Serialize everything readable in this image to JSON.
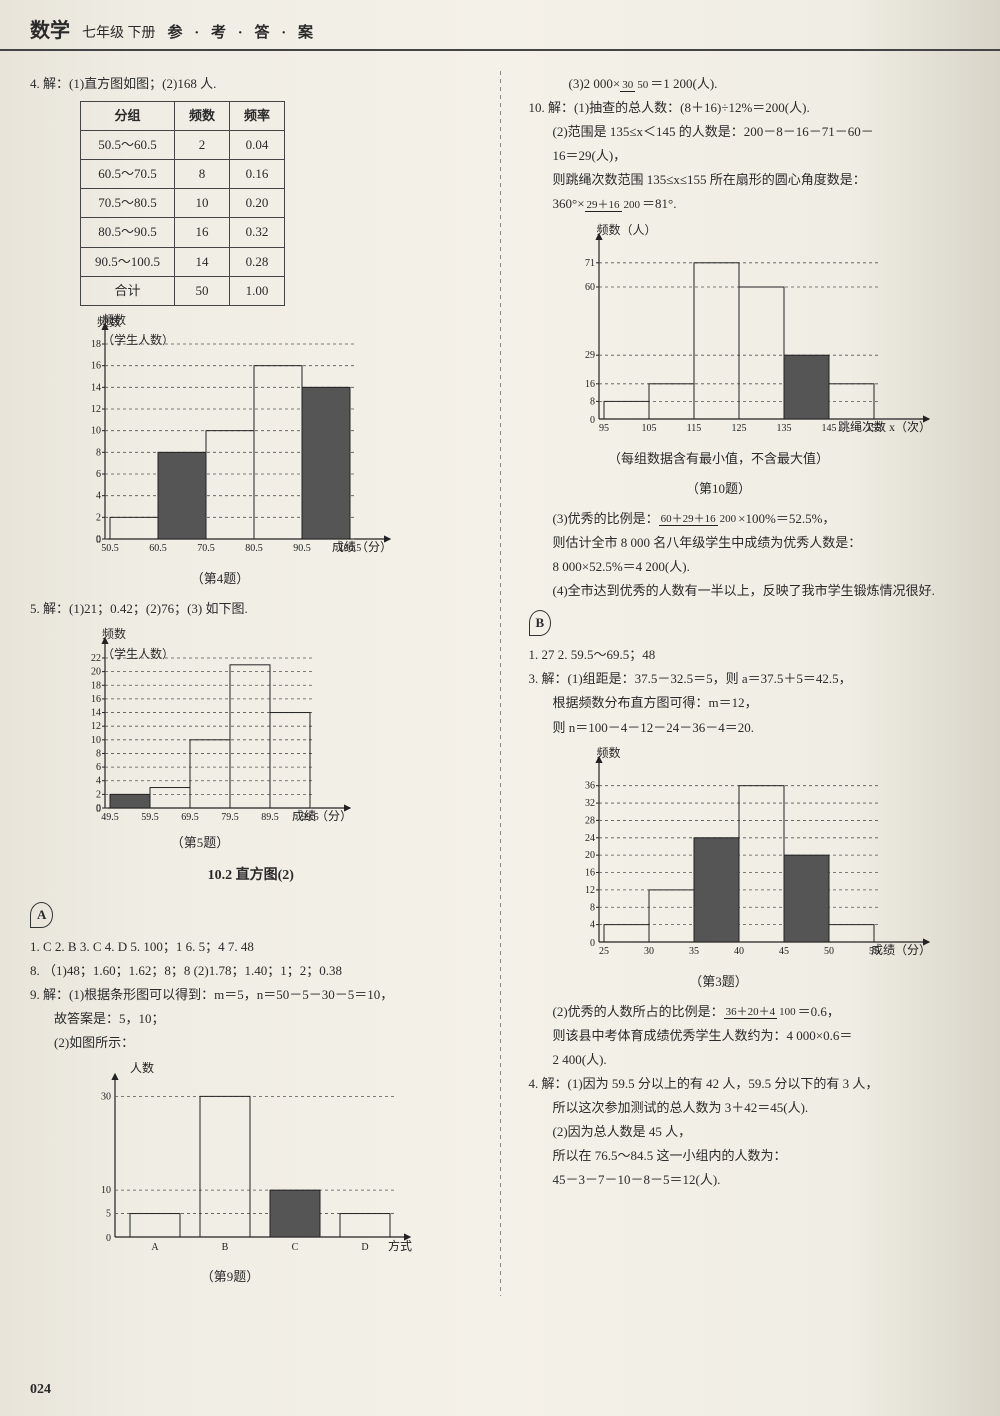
{
  "header": {
    "subject": "数学",
    "grade": "七年级  下册",
    "title": "参 · 考 · 答 · 案"
  },
  "page_number": "024",
  "left": {
    "q4_intro": "4. 解：(1)直方图如图；(2)168 人.",
    "q4_table": {
      "headers": [
        "分组",
        "频数",
        "频率"
      ],
      "rows": [
        [
          "50.5～60.5",
          "2",
          "0.04"
        ],
        [
          "60.5～70.5",
          "8",
          "0.16"
        ],
        [
          "70.5～80.5",
          "10",
          "0.20"
        ],
        [
          "80.5～90.5",
          "16",
          "0.32"
        ],
        [
          "90.5～100.5",
          "14",
          "0.28"
        ],
        [
          "合计",
          "50",
          "1.00"
        ]
      ]
    },
    "chart4": {
      "type": "histogram",
      "y_title": "频数\n（学生人数）",
      "x_title": "成绩（分）",
      "y_ticks": [
        0,
        2,
        4,
        6,
        8,
        10,
        12,
        14,
        16,
        18
      ],
      "x_labels": [
        "50.5",
        "60.5",
        "70.5",
        "80.5",
        "90.5",
        "100.5"
      ],
      "bars": [
        {
          "v": 2,
          "shaded": false
        },
        {
          "v": 8,
          "shaded": true
        },
        {
          "v": 10,
          "shaded": false
        },
        {
          "v": 16,
          "shaded": false
        },
        {
          "v": 14,
          "shaded": true
        }
      ],
      "caption": "（第4题）"
    },
    "q5_intro": "5. 解：(1)21；0.42；(2)76；(3) 如下图.",
    "chart5": {
      "type": "histogram",
      "y_title": "频数\n（学生人数）",
      "x_title": "成绩（分）",
      "y_ticks": [
        0,
        2,
        4,
        6,
        8,
        10,
        12,
        14,
        16,
        18,
        20,
        22
      ],
      "x_labels": [
        "49.5",
        "59.5",
        "69.5",
        "79.5",
        "89.5",
        "99.5"
      ],
      "bars": [
        {
          "v": 2,
          "shaded": true
        },
        {
          "v": 3,
          "shaded": false
        },
        {
          "v": 10,
          "shaded": false
        },
        {
          "v": 21,
          "shaded": false
        },
        {
          "v": 14,
          "shaded": false
        }
      ],
      "caption": "（第5题）"
    },
    "section_heading": "10.2  直方图(2)",
    "badge_a": "A",
    "a_answers": [
      "1. C   2. B   3. C   4. D   5. 100；1   6. 5；4   7. 48",
      "8. （1)48；1.60；1.62；8；8   (2)1.78；1.40；1；2；0.38",
      "9. 解：(1)根据条形图可以得到：m＝5，n＝50－5－30－5＝10，",
      "故答案是：5，10；",
      "(2)如图所示："
    ],
    "chart9": {
      "type": "bar",
      "y_title": "人数",
      "x_title": "方式",
      "y_ticks": [
        5,
        10,
        30
      ],
      "x_labels": [
        "A",
        "B",
        "C",
        "D"
      ],
      "bars": [
        {
          "v": 5,
          "shaded": false
        },
        {
          "v": 30,
          "shaded": false
        },
        {
          "v": 10,
          "shaded": true
        },
        {
          "v": 5,
          "shaded": false
        }
      ],
      "caption": "（第9题）"
    }
  },
  "right": {
    "q9_3": "(3)2 000×",
    "q9_3_frac": {
      "n": "30",
      "d": "50"
    },
    "q9_3_tail": "＝1 200(人).",
    "q10_lines": [
      "10. 解：(1)抽查的总人数：(8＋16)÷12%＝200(人).",
      "(2)范围是 135≤x＜145 的人数是：200－8－16－71－60－",
      "16＝29(人)，",
      "则跳绳次数范围 135≤x≤155 所在扇形的圆心角度数是："
    ],
    "q10_calc_pre": "360°×",
    "q10_calc_frac": {
      "n": "29＋16",
      "d": "200"
    },
    "q10_calc_post": "＝81°.",
    "chart10": {
      "type": "histogram",
      "y_title": "频数（人）",
      "x_title": "跳绳次数 x（次）",
      "y_ticks_labeled": [
        8,
        16,
        29,
        60,
        71
      ],
      "x_labels": [
        "95",
        "105",
        "115",
        "125",
        "135",
        "145",
        "155"
      ],
      "bars": [
        {
          "v": 8,
          "shaded": false
        },
        {
          "v": 16,
          "shaded": false
        },
        {
          "v": 71,
          "shaded": false
        },
        {
          "v": 60,
          "shaded": false
        },
        {
          "v": 29,
          "shaded": true
        },
        {
          "v": 16,
          "shaded": false
        }
      ],
      "note": "（每组数据含有最小值，不含最大值）",
      "caption": "（第10题）"
    },
    "q10_3_pre": "(3)优秀的比例是：",
    "q10_3_frac": {
      "n": "60＋29＋16",
      "d": "200"
    },
    "q10_3_post": "×100%＝52.5%，",
    "q10_3b": "则估计全市 8 000 名八年级学生中成绩为优秀人数是：",
    "q10_3c": "8 000×52.5%＝4 200(人).",
    "q10_4": "(4)全市达到优秀的人数有一半以上，反映了我市学生锻炼情况很好.",
    "badge_b": "B",
    "b_intro": "1. 27   2. 59.5～69.5；48",
    "b_q3_lines": [
      "3. 解：(1)组距是：37.5－32.5＝5，则 a＝37.5＋5＝42.5，",
      "根据频数分布直方图可得：m＝12，",
      "则 n＝100－4－12－24－36－4＝20."
    ],
    "chart3b": {
      "type": "histogram",
      "y_title": "频数",
      "x_title": "成绩（分）",
      "y_ticks": [
        4,
        8,
        12,
        16,
        20,
        24,
        28,
        32,
        36
      ],
      "x_labels": [
        "25",
        "30",
        "35",
        "40",
        "45",
        "50",
        "55"
      ],
      "bars": [
        {
          "v": 4,
          "shaded": false
        },
        {
          "v": 12,
          "shaded": false
        },
        {
          "v": 24,
          "shaded": true
        },
        {
          "v": 36,
          "shaded": false
        },
        {
          "v": 20,
          "shaded": true
        },
        {
          "v": 4,
          "shaded": false
        }
      ],
      "caption": "（第3题）"
    },
    "b_q3_2_pre": "(2)优秀的人数所占的比例是：",
    "b_q3_2_frac": {
      "n": "36＋20＋4",
      "d": "100"
    },
    "b_q3_2_post": "＝0.6，",
    "b_q3_2b": "则该县中考体育成绩优秀学生人数约为：4 000×0.6＝",
    "b_q3_2c": "2 400(人).",
    "b_q4_lines": [
      "4. 解：(1)因为 59.5 分以上的有 42 人，59.5 分以下的有 3 人，",
      "所以这次参加测试的总人数为 3＋42＝45(人).",
      "(2)因为总人数是 45 人，",
      "所以在 76.5～84.5 这一小组内的人数为：",
      "45－3－7－10－8－5＝12(人)."
    ]
  }
}
